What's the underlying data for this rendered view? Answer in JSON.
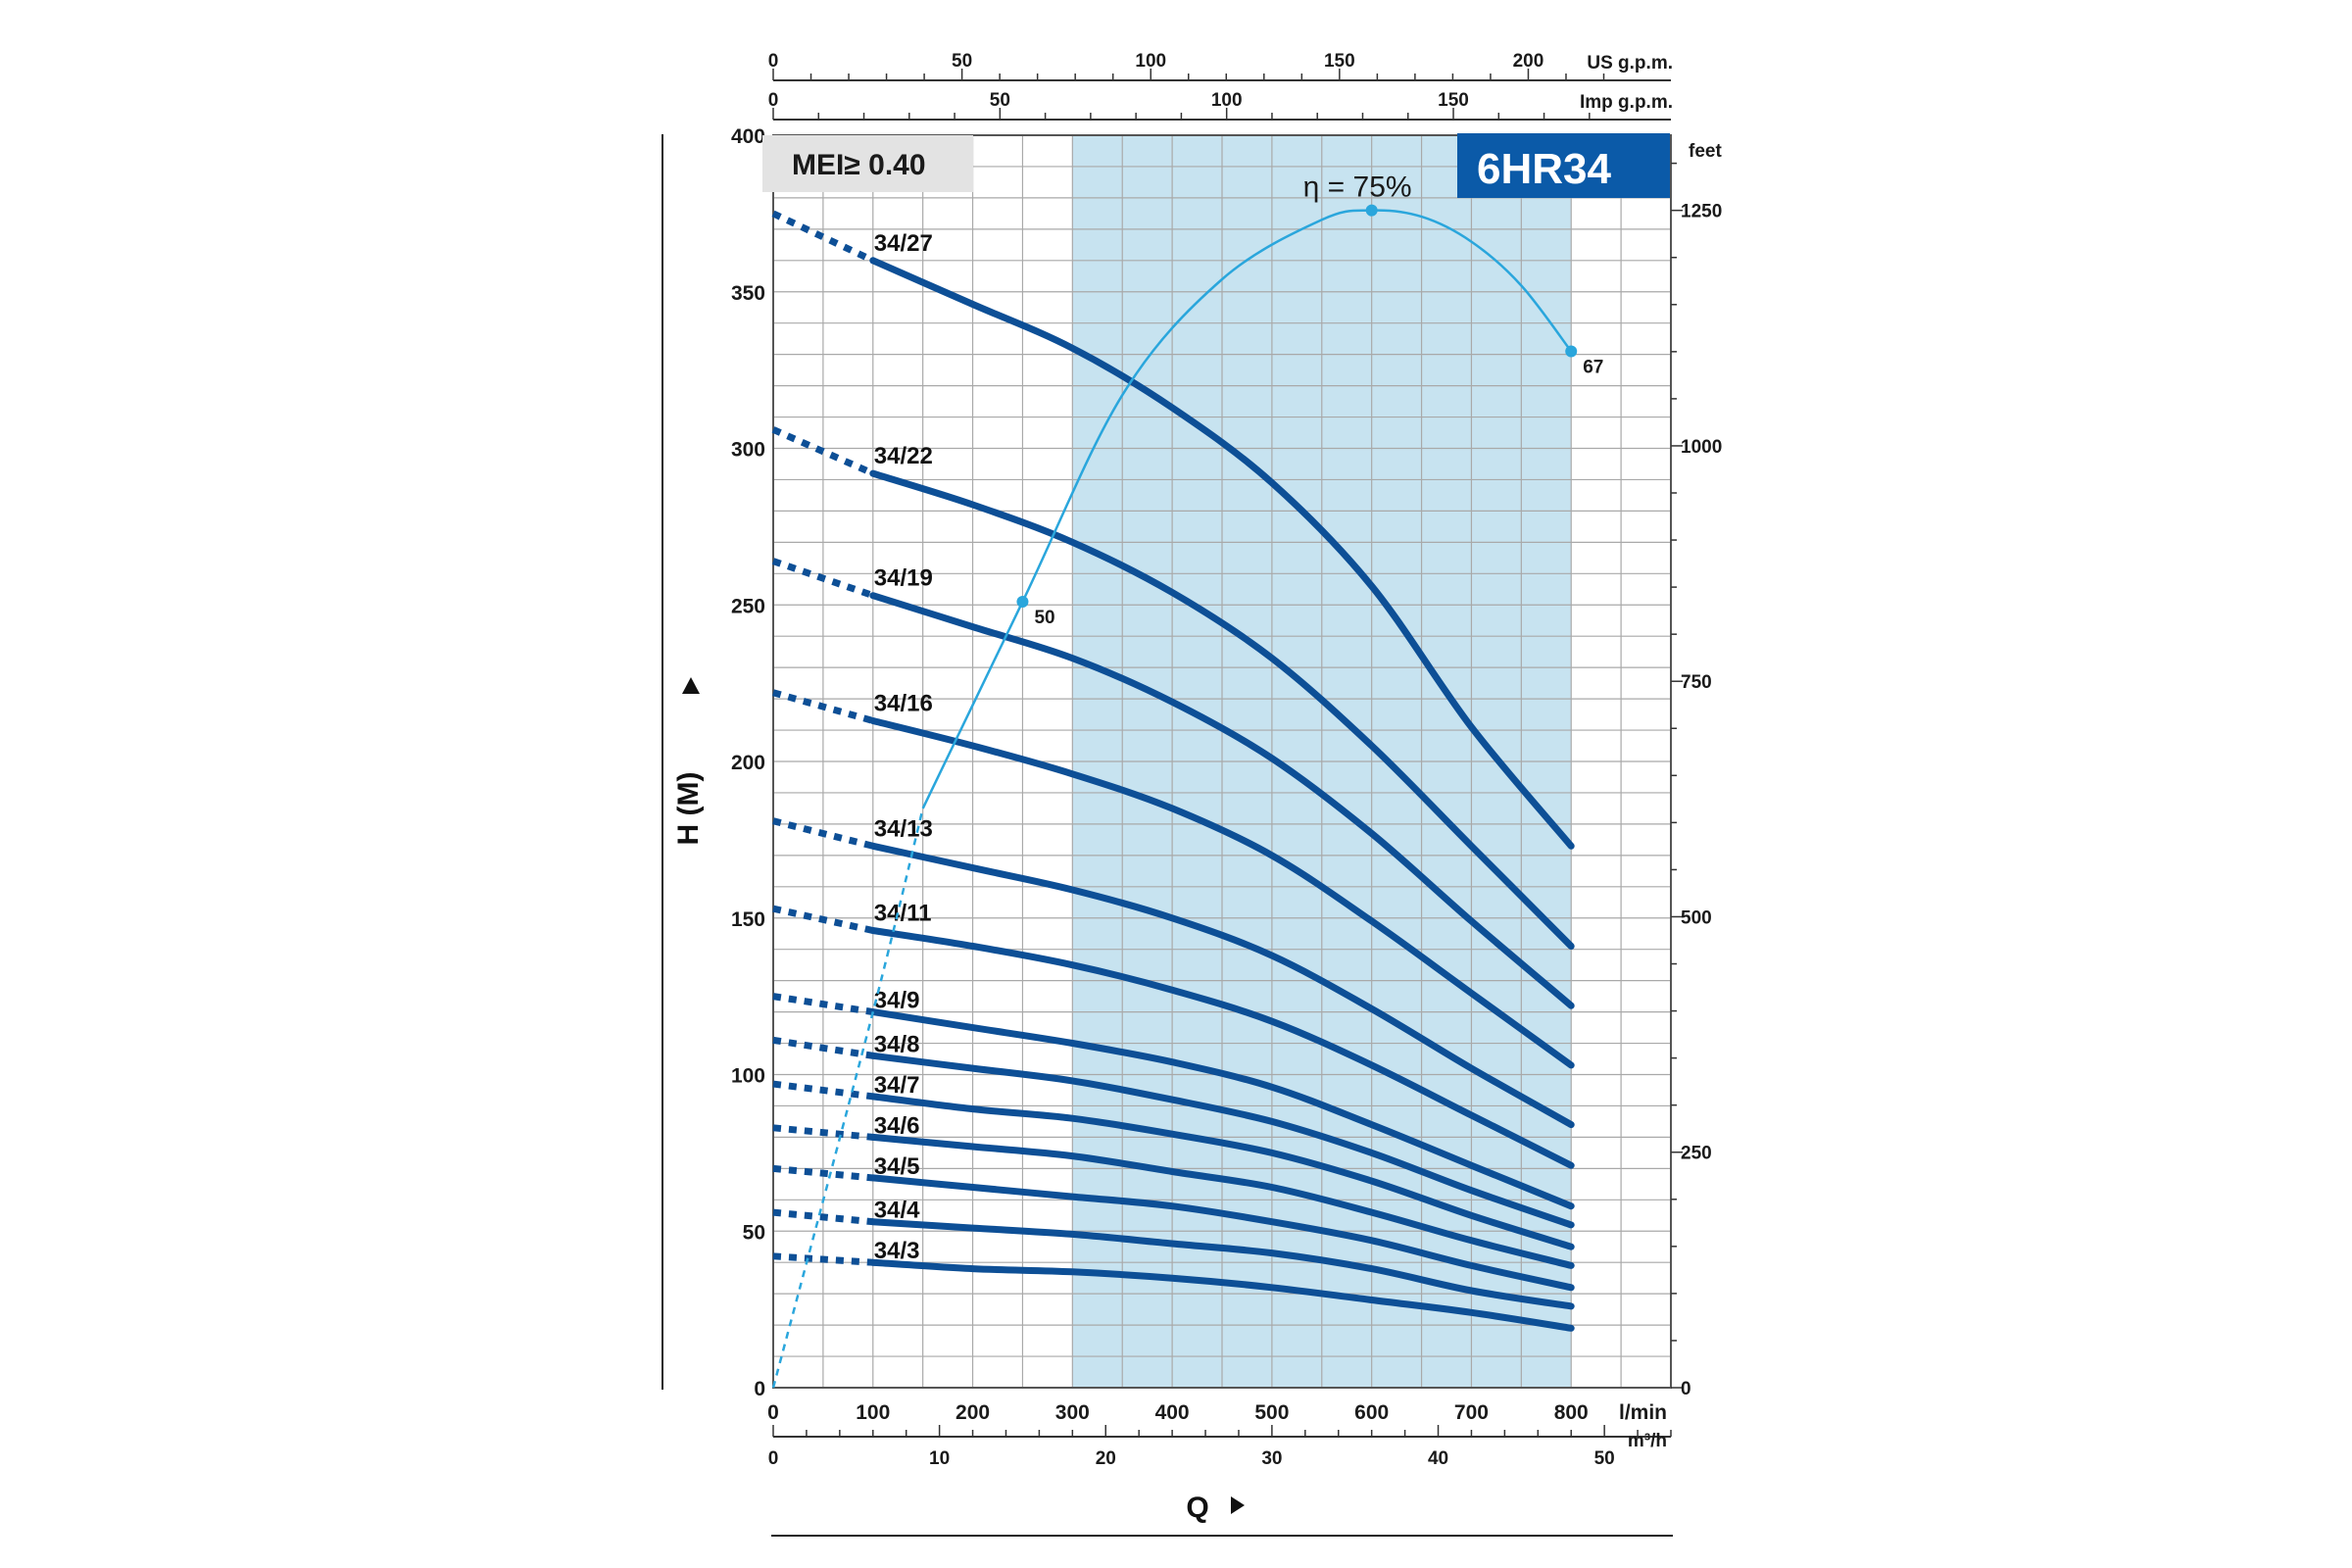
{
  "chart_data": {
    "type": "line",
    "model": "6HR34",
    "badge": "MEI≥ 0.40",
    "ylabel": "H (M)",
    "xlabel": "Q",
    "xlim": [
      0,
      900
    ],
    "ylim": [
      0,
      400
    ],
    "x_unit": "l/min",
    "x_ticks": [
      "0",
      "100",
      "200",
      "300",
      "400",
      "500",
      "600",
      "700",
      "800"
    ],
    "y_ticks": [
      "0",
      "50",
      "100",
      "150",
      "200",
      "250",
      "300",
      "350",
      "400"
    ],
    "feet_axis": {
      "unit": "feet",
      "ticks": [
        {
          "value": 0,
          "label": "0"
        },
        {
          "value": 250,
          "label": "250"
        },
        {
          "value": 500,
          "label": "500"
        },
        {
          "value": 750,
          "label": "750"
        },
        {
          "value": 1000,
          "label": "1000"
        },
        {
          "value": 1250,
          "label": "1250"
        }
      ]
    },
    "us_gpm_axis": {
      "unit": "US g.p.m.",
      "ticks": [
        {
          "value": 0,
          "label": "0"
        },
        {
          "value": 50,
          "label": "50"
        },
        {
          "value": 100,
          "label": "100"
        },
        {
          "value": 150,
          "label": "150"
        },
        {
          "value": 200,
          "label": "200"
        }
      ]
    },
    "imp_gpm_axis": {
      "unit": "Imp g.p.m.",
      "ticks": [
        {
          "value": 0,
          "label": "0"
        },
        {
          "value": 50,
          "label": "50"
        },
        {
          "value": 100,
          "label": "100"
        },
        {
          "value": 150,
          "label": "150"
        }
      ]
    },
    "m3h_axis": {
      "unit": "m³/h",
      "ticks": [
        {
          "value": 0,
          "label": "0"
        },
        {
          "value": 10,
          "label": "10"
        },
        {
          "value": 20,
          "label": "20"
        },
        {
          "value": 30,
          "label": "30"
        },
        {
          "value": 40,
          "label": "40"
        },
        {
          "value": 50,
          "label": "50"
        }
      ]
    },
    "recommended_range": [
      300,
      800
    ],
    "x": [
      0,
      100,
      200,
      300,
      400,
      500,
      600,
      700,
      800
    ],
    "series": [
      {
        "name": "34/27",
        "values": [
          375,
          360,
          346,
          332,
          313,
          289,
          256,
          211,
          173
        ]
      },
      {
        "name": "34/22",
        "values": [
          306,
          292,
          282,
          270,
          254,
          233,
          205,
          173,
          141
        ]
      },
      {
        "name": "34/19",
        "values": [
          264,
          253,
          243,
          233,
          219,
          201,
          177,
          149,
          122
        ]
      },
      {
        "name": "34/16",
        "values": [
          222,
          213,
          205,
          196,
          185,
          170,
          149,
          126,
          103
        ]
      },
      {
        "name": "34/13",
        "values": [
          181,
          173,
          166,
          159,
          150,
          138,
          121,
          102,
          84
        ]
      },
      {
        "name": "34/11",
        "values": [
          153,
          146,
          141,
          135,
          127,
          117,
          103,
          87,
          71
        ]
      },
      {
        "name": "34/9",
        "values": [
          125,
          120,
          115,
          110,
          104,
          96,
          84,
          71,
          58
        ]
      },
      {
        "name": "34/8",
        "values": [
          111,
          106,
          102,
          98,
          92,
          85,
          75,
          63,
          52
        ]
      },
      {
        "name": "34/7",
        "values": [
          97,
          93,
          89,
          86,
          81,
          75,
          66,
          55,
          45
        ]
      },
      {
        "name": "34/6",
        "values": [
          83,
          80,
          77,
          74,
          69,
          64,
          56,
          47,
          39
        ]
      },
      {
        "name": "34/5",
        "values": [
          70,
          67,
          64,
          61,
          58,
          53,
          47,
          39,
          32
        ]
      },
      {
        "name": "34/4",
        "values": [
          56,
          53,
          51,
          49,
          46,
          43,
          38,
          31,
          26
        ]
      },
      {
        "name": "34/3",
        "values": [
          42,
          40,
          38,
          37,
          35,
          32,
          28,
          24,
          19
        ]
      }
    ],
    "efficiency_curve": {
      "label": "η = 75%",
      "x": [
        0,
        100,
        150,
        250,
        350,
        450,
        550,
        600,
        650,
        700,
        750,
        800
      ],
      "y": [
        0,
        120,
        185,
        251,
        317,
        354,
        373,
        376,
        374,
        366,
        352,
        331
      ],
      "marks": [
        {
          "x": 250,
          "y": 251,
          "label": "50"
        },
        {
          "x": 600,
          "y": 376,
          "label": ""
        },
        {
          "x": 800,
          "y": 331,
          "label": "67"
        }
      ]
    }
  },
  "colors": {
    "curve": "#0d4f96",
    "efficiency": "#2aa6dc",
    "band": "#c7e3f0",
    "grid": "#a9a9a9",
    "model_bg": "#0b5aa8",
    "badge_bg": "#e3e3e3"
  }
}
